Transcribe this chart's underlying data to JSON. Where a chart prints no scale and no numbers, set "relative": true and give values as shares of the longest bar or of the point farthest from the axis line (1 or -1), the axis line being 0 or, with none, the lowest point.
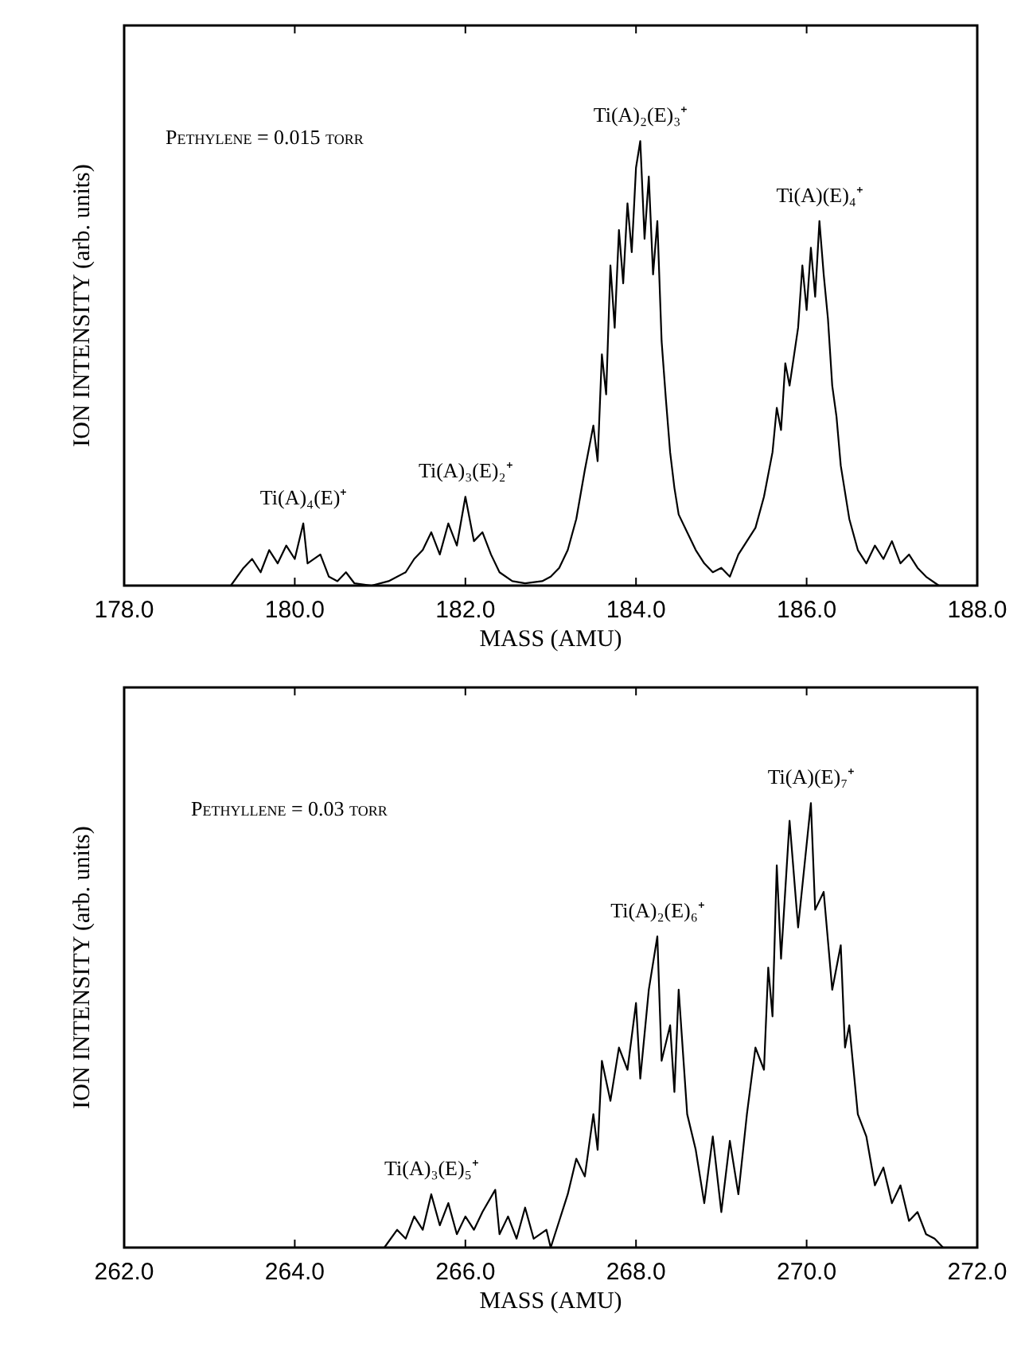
{
  "chart_data": [
    {
      "type": "line",
      "relative": true,
      "color": "#000000",
      "xlabel": "MASS (AMU)",
      "ylabel": "ION INTENSITY (arb. units)",
      "tick_labels": "x",
      "xlim": [
        178,
        188
      ],
      "xticks": [
        {
          "value": 178,
          "label": "178.0"
        },
        {
          "value": 180,
          "label": "180.0"
        },
        {
          "value": 182,
          "label": "182.0"
        },
        {
          "value": 184,
          "label": "184.0"
        },
        {
          "value": 186,
          "label": "186.0"
        },
        {
          "value": 188,
          "label": "188.0"
        }
      ],
      "annotations": [
        "Pethylene = 0.015 torr",
        {
          "text": "Ti(A)₄(E)⁺",
          "x": 180.1,
          "y": 0.14
        },
        {
          "text": "Ti(A)₃(E)₂⁺",
          "x": 182.0,
          "y": 0.2
        },
        {
          "text": "Ti(A)₂(E)₃⁺",
          "x": 184.05,
          "y": 1.0
        },
        {
          "text": "Ti(A)(E)₄⁺",
          "x": 186.15,
          "y": 0.82
        }
      ],
      "x": [
        179.25,
        179.4,
        179.5,
        179.6,
        179.7,
        179.8,
        179.9,
        180.0,
        180.1,
        180.15,
        180.3,
        180.4,
        180.5,
        180.6,
        180.7,
        180.9,
        181.1,
        181.3,
        181.4,
        181.5,
        181.6,
        181.7,
        181.8,
        181.9,
        182.0,
        182.1,
        182.2,
        182.3,
        182.4,
        182.55,
        182.7,
        182.9,
        183.0,
        183.1,
        183.2,
        183.3,
        183.4,
        183.5,
        183.55,
        183.6,
        183.65,
        183.7,
        183.75,
        183.8,
        183.85,
        183.9,
        183.95,
        184.0,
        184.05,
        184.1,
        184.15,
        184.2,
        184.25,
        184.3,
        184.35,
        184.4,
        184.45,
        184.5,
        184.6,
        184.7,
        184.8,
        184.9,
        185.0,
        185.1,
        185.2,
        185.3,
        185.4,
        185.5,
        185.6,
        185.65,
        185.7,
        185.75,
        185.8,
        185.9,
        185.95,
        186.0,
        186.05,
        186.1,
        186.15,
        186.2,
        186.25,
        186.3,
        186.35,
        186.4,
        186.5,
        186.6,
        186.7,
        186.8,
        186.9,
        187.0,
        187.1,
        187.2,
        187.3,
        187.4,
        187.55
      ],
      "values": [
        0,
        0.04,
        0.06,
        0.03,
        0.08,
        0.05,
        0.09,
        0.06,
        0.14,
        0.05,
        0.07,
        0.02,
        0.01,
        0.03,
        0.005,
        0,
        0.01,
        0.03,
        0.06,
        0.08,
        0.12,
        0.07,
        0.14,
        0.09,
        0.2,
        0.1,
        0.12,
        0.07,
        0.03,
        0.01,
        0.005,
        0.01,
        0.02,
        0.04,
        0.08,
        0.15,
        0.26,
        0.36,
        0.28,
        0.52,
        0.43,
        0.72,
        0.58,
        0.8,
        0.68,
        0.86,
        0.75,
        0.94,
        1.0,
        0.78,
        0.92,
        0.7,
        0.82,
        0.55,
        0.42,
        0.3,
        0.22,
        0.16,
        0.12,
        0.08,
        0.05,
        0.03,
        0.04,
        0.02,
        0.07,
        0.1,
        0.13,
        0.2,
        0.3,
        0.4,
        0.35,
        0.5,
        0.45,
        0.58,
        0.72,
        0.62,
        0.76,
        0.65,
        0.82,
        0.7,
        0.6,
        0.45,
        0.38,
        0.27,
        0.15,
        0.08,
        0.05,
        0.09,
        0.06,
        0.1,
        0.05,
        0.07,
        0.04,
        0.02,
        0
      ]
    },
    {
      "type": "line",
      "relative": true,
      "color": "#000000",
      "xlabel": "MASS (AMU)",
      "ylabel": "ION INTENSITY (arb. units)",
      "tick_labels": "x",
      "xlim": [
        262,
        272
      ],
      "xticks": [
        {
          "value": 262,
          "label": "262.0"
        },
        {
          "value": 264,
          "label": "264.0"
        },
        {
          "value": 266,
          "label": "266.0"
        },
        {
          "value": 268,
          "label": "268.0"
        },
        {
          "value": 270,
          "label": "270.0"
        },
        {
          "value": 272,
          "label": "272.0"
        }
      ],
      "annotations": [
        "Pethyllene = 0.03 torr",
        {
          "text": "Ti(A)₃(E)₅⁺",
          "x": 265.6,
          "y": 0.12
        },
        {
          "text": "Ti(A)₂(E)₆⁺",
          "x": 268.25,
          "y": 0.7
        },
        {
          "text": "Ti(A)(E)₇⁺",
          "x": 270.05,
          "y": 1.0
        }
      ],
      "x": [
        265.05,
        265.2,
        265.3,
        265.4,
        265.5,
        265.6,
        265.7,
        265.8,
        265.9,
        266.0,
        266.1,
        266.2,
        266.35,
        266.4,
        266.5,
        266.6,
        266.7,
        266.8,
        266.95,
        267.0,
        267.1,
        267.2,
        267.3,
        267.4,
        267.5,
        267.55,
        267.6,
        267.7,
        267.8,
        267.9,
        268.0,
        268.05,
        268.15,
        268.25,
        268.3,
        268.4,
        268.45,
        268.5,
        268.6,
        268.7,
        268.8,
        268.9,
        269.0,
        269.1,
        269.2,
        269.3,
        269.4,
        269.5,
        269.55,
        269.6,
        269.65,
        269.7,
        269.8,
        269.9,
        270.05,
        270.1,
        270.2,
        270.3,
        270.4,
        270.45,
        270.5,
        270.6,
        270.7,
        270.8,
        270.9,
        271.0,
        271.1,
        271.2,
        271.3,
        271.4,
        271.5,
        271.6
      ],
      "values": [
        0,
        0.04,
        0.02,
        0.07,
        0.04,
        0.12,
        0.05,
        0.1,
        0.03,
        0.07,
        0.04,
        0.08,
        0.13,
        0.03,
        0.07,
        0.02,
        0.09,
        0.02,
        0.04,
        0,
        0.06,
        0.12,
        0.2,
        0.16,
        0.3,
        0.22,
        0.42,
        0.33,
        0.45,
        0.4,
        0.55,
        0.38,
        0.58,
        0.7,
        0.42,
        0.5,
        0.35,
        0.58,
        0.3,
        0.22,
        0.1,
        0.25,
        0.08,
        0.24,
        0.12,
        0.3,
        0.45,
        0.4,
        0.63,
        0.52,
        0.86,
        0.65,
        0.96,
        0.72,
        1.0,
        0.76,
        0.8,
        0.58,
        0.68,
        0.45,
        0.5,
        0.3,
        0.25,
        0.14,
        0.18,
        0.1,
        0.14,
        0.06,
        0.08,
        0.03,
        0.02,
        0
      ]
    }
  ]
}
